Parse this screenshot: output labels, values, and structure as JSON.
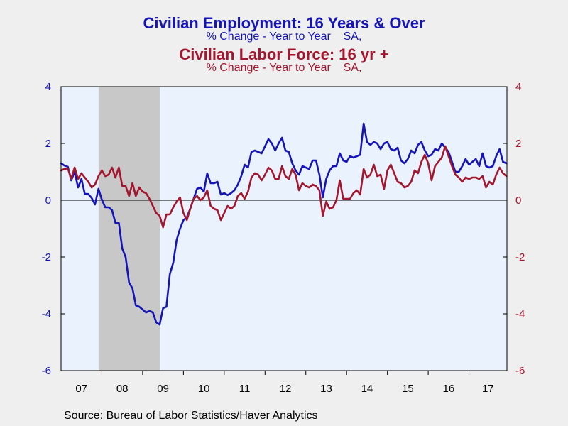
{
  "chart_data": {
    "type": "line",
    "title_1": "Civilian Employment: 16 Years & Over",
    "subtitle_1": "% Change - Year to Year    SA,",
    "title_2": "Civilian Labor Force: 16 yr +",
    "subtitle_2": "% Change - Year to Year    SA,",
    "source": "Source:  Bureau of Labor Statistics/Haver Analytics",
    "x_ticks": [
      "07",
      "08",
      "09",
      "10",
      "11",
      "12",
      "13",
      "14",
      "15",
      "16",
      "17"
    ],
    "x_range": [
      2007.0,
      2017.93
    ],
    "y_left": {
      "range": [
        -6,
        4
      ],
      "ticks": [
        "4",
        "2",
        "0",
        "-2",
        "-4",
        "-6"
      ]
    },
    "y_right": {
      "range": [
        -6,
        4
      ],
      "ticks": [
        "4",
        "2",
        "0",
        "-2",
        "-4",
        "-6"
      ]
    },
    "recession": [
      2007.92,
      2009.42
    ],
    "zero_line": true,
    "colors": {
      "employment": "#1414b8",
      "labor_force": "#a3162e",
      "plot_background": "#eaf3fd",
      "recession_shade": "#c8c8c8"
    },
    "series": [
      {
        "name": "Civilian Employment: 16 Years & Over",
        "color": "#1414b8",
        "points": [
          [
            2007.0,
            1.3
          ],
          [
            2007.083,
            1.22
          ],
          [
            2007.167,
            1.18
          ],
          [
            2007.25,
            0.7
          ],
          [
            2007.333,
            1.0
          ],
          [
            2007.417,
            0.45
          ],
          [
            2007.5,
            0.75
          ],
          [
            2007.583,
            0.22
          ],
          [
            2007.667,
            0.22
          ],
          [
            2007.75,
            0.08
          ],
          [
            2007.833,
            -0.15
          ],
          [
            2007.917,
            0.4
          ],
          [
            2008.0,
            0.02
          ],
          [
            2008.083,
            -0.25
          ],
          [
            2008.167,
            -0.25
          ],
          [
            2008.25,
            -0.35
          ],
          [
            2008.333,
            -0.8
          ],
          [
            2008.417,
            -0.8
          ],
          [
            2008.5,
            -1.7
          ],
          [
            2008.583,
            -2.0
          ],
          [
            2008.667,
            -2.9
          ],
          [
            2008.75,
            -3.1
          ],
          [
            2008.833,
            -3.7
          ],
          [
            2008.917,
            -3.75
          ],
          [
            2009.0,
            -3.85
          ],
          [
            2009.083,
            -3.95
          ],
          [
            2009.167,
            -3.9
          ],
          [
            2009.25,
            -3.95
          ],
          [
            2009.333,
            -4.3
          ],
          [
            2009.417,
            -4.38
          ],
          [
            2009.5,
            -3.8
          ],
          [
            2009.583,
            -3.75
          ],
          [
            2009.667,
            -2.6
          ],
          [
            2009.75,
            -2.2
          ],
          [
            2009.833,
            -1.4
          ],
          [
            2009.917,
            -1.0
          ],
          [
            2010.0,
            -0.7
          ],
          [
            2010.083,
            -0.6
          ],
          [
            2010.167,
            -0.3
          ],
          [
            2010.25,
            0.05
          ],
          [
            2010.333,
            0.4
          ],
          [
            2010.417,
            0.45
          ],
          [
            2010.5,
            0.3
          ],
          [
            2010.583,
            0.95
          ],
          [
            2010.667,
            0.6
          ],
          [
            2010.75,
            0.6
          ],
          [
            2010.833,
            0.65
          ],
          [
            2010.917,
            0.2
          ],
          [
            2011.0,
            0.25
          ],
          [
            2011.083,
            0.18
          ],
          [
            2011.167,
            0.25
          ],
          [
            2011.25,
            0.35
          ],
          [
            2011.333,
            0.55
          ],
          [
            2011.417,
            0.85
          ],
          [
            2011.5,
            1.25
          ],
          [
            2011.583,
            1.15
          ],
          [
            2011.667,
            1.7
          ],
          [
            2011.75,
            1.75
          ],
          [
            2011.833,
            1.7
          ],
          [
            2011.917,
            1.65
          ],
          [
            2012.0,
            1.9
          ],
          [
            2012.083,
            2.15
          ],
          [
            2012.167,
            2.0
          ],
          [
            2012.25,
            1.75
          ],
          [
            2012.333,
            2.0
          ],
          [
            2012.417,
            2.2
          ],
          [
            2012.5,
            1.75
          ],
          [
            2012.583,
            1.7
          ],
          [
            2012.667,
            1.3
          ],
          [
            2012.75,
            1.05
          ],
          [
            2012.833,
            0.9
          ],
          [
            2012.917,
            1.2
          ],
          [
            2013.0,
            1.15
          ],
          [
            2013.083,
            1.1
          ],
          [
            2013.167,
            1.4
          ],
          [
            2013.25,
            1.4
          ],
          [
            2013.333,
            0.9
          ],
          [
            2013.417,
            0.1
          ],
          [
            2013.5,
            0.75
          ],
          [
            2013.583,
            1.05
          ],
          [
            2013.667,
            1.2
          ],
          [
            2013.75,
            1.2
          ],
          [
            2013.833,
            1.65
          ],
          [
            2013.917,
            1.4
          ],
          [
            2014.0,
            1.35
          ],
          [
            2014.083,
            1.55
          ],
          [
            2014.167,
            1.5
          ],
          [
            2014.25,
            1.55
          ],
          [
            2014.333,
            1.6
          ],
          [
            2014.417,
            2.7
          ],
          [
            2014.5,
            2.05
          ],
          [
            2014.583,
            1.95
          ],
          [
            2014.667,
            2.05
          ],
          [
            2014.75,
            2.0
          ],
          [
            2014.833,
            1.8
          ],
          [
            2014.917,
            2.0
          ],
          [
            2015.0,
            2.05
          ],
          [
            2015.083,
            1.8
          ],
          [
            2015.167,
            1.75
          ],
          [
            2015.25,
            1.85
          ],
          [
            2015.333,
            1.4
          ],
          [
            2015.417,
            1.3
          ],
          [
            2015.5,
            1.45
          ],
          [
            2015.583,
            1.75
          ],
          [
            2015.667,
            1.65
          ],
          [
            2015.75,
            1.95
          ],
          [
            2015.833,
            2.05
          ],
          [
            2015.917,
            1.75
          ],
          [
            2016.0,
            1.55
          ],
          [
            2016.083,
            1.6
          ],
          [
            2016.167,
            1.8
          ],
          [
            2016.25,
            1.75
          ],
          [
            2016.333,
            2.0
          ],
          [
            2016.417,
            1.85
          ],
          [
            2016.5,
            1.7
          ],
          [
            2016.583,
            1.35
          ],
          [
            2016.667,
            1.0
          ],
          [
            2016.75,
            1.0
          ],
          [
            2016.833,
            1.2
          ],
          [
            2016.917,
            1.45
          ],
          [
            2017.0,
            1.25
          ],
          [
            2017.083,
            1.35
          ],
          [
            2017.167,
            1.45
          ],
          [
            2017.25,
            1.2
          ],
          [
            2017.333,
            1.65
          ],
          [
            2017.417,
            1.2
          ],
          [
            2017.5,
            1.15
          ],
          [
            2017.583,
            1.2
          ],
          [
            2017.667,
            1.55
          ],
          [
            2017.75,
            1.8
          ],
          [
            2017.833,
            1.35
          ],
          [
            2017.917,
            1.3
          ]
        ]
      },
      {
        "name": "Civilian Labor Force: 16 yr +",
        "color": "#a3162e",
        "points": [
          [
            2007.0,
            1.05
          ],
          [
            2007.083,
            1.1
          ],
          [
            2007.167,
            1.12
          ],
          [
            2007.25,
            0.75
          ],
          [
            2007.333,
            1.15
          ],
          [
            2007.417,
            0.75
          ],
          [
            2007.5,
            0.95
          ],
          [
            2007.583,
            0.8
          ],
          [
            2007.667,
            0.65
          ],
          [
            2007.75,
            0.45
          ],
          [
            2007.833,
            0.55
          ],
          [
            2007.917,
            0.85
          ],
          [
            2008.0,
            1.05
          ],
          [
            2008.083,
            0.85
          ],
          [
            2008.167,
            0.9
          ],
          [
            2008.25,
            1.15
          ],
          [
            2008.333,
            0.8
          ],
          [
            2008.417,
            1.15
          ],
          [
            2008.5,
            0.5
          ],
          [
            2008.583,
            0.5
          ],
          [
            2008.667,
            0.15
          ],
          [
            2008.75,
            0.6
          ],
          [
            2008.833,
            0.15
          ],
          [
            2008.917,
            0.45
          ],
          [
            2009.0,
            0.3
          ],
          [
            2009.083,
            0.25
          ],
          [
            2009.167,
            0.05
          ],
          [
            2009.25,
            -0.2
          ],
          [
            2009.333,
            -0.45
          ],
          [
            2009.417,
            -0.55
          ],
          [
            2009.5,
            -0.95
          ],
          [
            2009.583,
            -0.5
          ],
          [
            2009.667,
            -0.5
          ],
          [
            2009.75,
            -0.25
          ],
          [
            2009.833,
            -0.05
          ],
          [
            2009.917,
            0.1
          ],
          [
            2010.0,
            -0.45
          ],
          [
            2010.083,
            -0.7
          ],
          [
            2010.167,
            -0.3
          ],
          [
            2010.25,
            0.05
          ],
          [
            2010.333,
            0.15
          ],
          [
            2010.417,
            0.0
          ],
          [
            2010.5,
            0.1
          ],
          [
            2010.583,
            0.35
          ],
          [
            2010.667,
            -0.2
          ],
          [
            2010.75,
            -0.3
          ],
          [
            2010.833,
            -0.35
          ],
          [
            2010.917,
            -0.7
          ],
          [
            2011.0,
            -0.45
          ],
          [
            2011.083,
            -0.2
          ],
          [
            2011.167,
            -0.3
          ],
          [
            2011.25,
            -0.2
          ],
          [
            2011.333,
            0.15
          ],
          [
            2011.417,
            0.25
          ],
          [
            2011.5,
            0.05
          ],
          [
            2011.583,
            0.3
          ],
          [
            2011.667,
            0.8
          ],
          [
            2011.75,
            0.95
          ],
          [
            2011.833,
            0.9
          ],
          [
            2011.917,
            0.7
          ],
          [
            2012.0,
            0.9
          ],
          [
            2012.083,
            1.15
          ],
          [
            2012.167,
            1.05
          ],
          [
            2012.25,
            0.75
          ],
          [
            2012.333,
            0.75
          ],
          [
            2012.417,
            1.2
          ],
          [
            2012.5,
            0.85
          ],
          [
            2012.583,
            0.75
          ],
          [
            2012.667,
            1.1
          ],
          [
            2012.75,
            0.9
          ],
          [
            2012.833,
            0.35
          ],
          [
            2012.917,
            0.6
          ],
          [
            2013.0,
            0.5
          ],
          [
            2013.083,
            0.45
          ],
          [
            2013.167,
            0.55
          ],
          [
            2013.25,
            0.5
          ],
          [
            2013.333,
            0.35
          ],
          [
            2013.417,
            -0.55
          ],
          [
            2013.5,
            -0.05
          ],
          [
            2013.583,
            -0.3
          ],
          [
            2013.667,
            -0.25
          ],
          [
            2013.75,
            0.0
          ],
          [
            2013.833,
            0.7
          ],
          [
            2013.917,
            0.05
          ],
          [
            2014.0,
            0.05
          ],
          [
            2014.083,
            0.05
          ],
          [
            2014.167,
            0.25
          ],
          [
            2014.25,
            0.35
          ],
          [
            2014.333,
            0.2
          ],
          [
            2014.417,
            1.1
          ],
          [
            2014.5,
            0.8
          ],
          [
            2014.583,
            0.9
          ],
          [
            2014.667,
            1.25
          ],
          [
            2014.75,
            0.85
          ],
          [
            2014.833,
            0.9
          ],
          [
            2014.917,
            0.4
          ],
          [
            2015.0,
            1.05
          ],
          [
            2015.083,
            1.25
          ],
          [
            2015.167,
            0.95
          ],
          [
            2015.25,
            0.65
          ],
          [
            2015.333,
            0.6
          ],
          [
            2015.417,
            0.45
          ],
          [
            2015.5,
            0.5
          ],
          [
            2015.583,
            0.65
          ],
          [
            2015.667,
            1.05
          ],
          [
            2015.75,
            0.95
          ],
          [
            2015.833,
            1.35
          ],
          [
            2015.917,
            1.6
          ],
          [
            2016.0,
            1.3
          ],
          [
            2016.083,
            0.7
          ],
          [
            2016.167,
            1.2
          ],
          [
            2016.25,
            1.35
          ],
          [
            2016.333,
            1.5
          ],
          [
            2016.417,
            1.9
          ],
          [
            2016.5,
            1.55
          ],
          [
            2016.583,
            1.2
          ],
          [
            2016.667,
            0.9
          ],
          [
            2016.75,
            0.8
          ],
          [
            2016.833,
            0.65
          ],
          [
            2016.917,
            0.8
          ],
          [
            2017.0,
            0.75
          ],
          [
            2017.083,
            0.8
          ],
          [
            2017.167,
            0.8
          ],
          [
            2017.25,
            0.75
          ],
          [
            2017.333,
            0.85
          ],
          [
            2017.417,
            0.45
          ],
          [
            2017.5,
            0.65
          ],
          [
            2017.583,
            0.55
          ],
          [
            2017.667,
            0.9
          ],
          [
            2017.75,
            1.15
          ],
          [
            2017.833,
            0.95
          ],
          [
            2017.917,
            0.85
          ]
        ]
      }
    ]
  }
}
